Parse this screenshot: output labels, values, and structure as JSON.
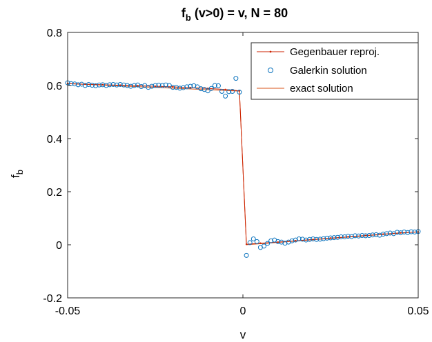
{
  "chart_data": {
    "type": "line",
    "title": {
      "base": "f",
      "sub": "b",
      "rest": " (v>0) = v, N = 80"
    },
    "xlabel": "v",
    "ylabel": {
      "base": "f",
      "sub": "b"
    },
    "xlim": [
      -0.05,
      0.05
    ],
    "ylim": [
      -0.2,
      0.8
    ],
    "xticks": [
      -0.05,
      0,
      0.05
    ],
    "xtick_labels": [
      "-0.05",
      "0",
      "0.05"
    ],
    "yticks": [
      -0.2,
      0,
      0.2,
      0.4,
      0.6,
      0.8
    ],
    "ytick_labels": [
      "-0.2",
      "0",
      "0.2",
      "0.4",
      "0.6",
      "0.8"
    ],
    "grid": false,
    "legend_position": "top-right",
    "series": [
      {
        "name": "Gegenbauer reproj.",
        "style": "line-with-dots",
        "color": "#cc2200",
        "x": [
          -0.05,
          -0.045,
          -0.04,
          -0.035,
          -0.03,
          -0.025,
          -0.02,
          -0.015,
          -0.01,
          -0.005,
          -0.001,
          0.001,
          0.005,
          0.01,
          0.015,
          0.02,
          0.025,
          0.03,
          0.035,
          0.04,
          0.045,
          0.05
        ],
        "y": [
          0.607,
          0.605,
          0.603,
          0.601,
          0.599,
          0.597,
          0.595,
          0.592,
          0.589,
          0.585,
          0.58,
          0.002,
          0.006,
          0.01,
          0.015,
          0.02,
          0.025,
          0.03,
          0.035,
          0.04,
          0.045,
          0.048
        ]
      },
      {
        "name": "Galerkin solution",
        "style": "markers",
        "color": "#0a72bd",
        "x": [
          -0.05,
          -0.049,
          -0.048,
          -0.047,
          -0.046,
          -0.045,
          -0.044,
          -0.043,
          -0.042,
          -0.041,
          -0.04,
          -0.039,
          -0.038,
          -0.037,
          -0.036,
          -0.035,
          -0.034,
          -0.033,
          -0.032,
          -0.031,
          -0.03,
          -0.029,
          -0.028,
          -0.027,
          -0.026,
          -0.025,
          -0.024,
          -0.023,
          -0.022,
          -0.021,
          -0.02,
          -0.019,
          -0.018,
          -0.017,
          -0.016,
          -0.015,
          -0.014,
          -0.013,
          -0.012,
          -0.011,
          -0.01,
          -0.009,
          -0.008,
          -0.007,
          -0.006,
          -0.005,
          -0.004,
          -0.003,
          -0.002,
          -0.001,
          0.001,
          0.002,
          0.003,
          0.004,
          0.005,
          0.006,
          0.007,
          0.008,
          0.009,
          0.01,
          0.011,
          0.012,
          0.013,
          0.014,
          0.015,
          0.016,
          0.017,
          0.018,
          0.019,
          0.02,
          0.021,
          0.022,
          0.023,
          0.024,
          0.025,
          0.026,
          0.027,
          0.028,
          0.029,
          0.03,
          0.031,
          0.032,
          0.033,
          0.034,
          0.035,
          0.036,
          0.037,
          0.038,
          0.039,
          0.04,
          0.041,
          0.042,
          0.043,
          0.044,
          0.045,
          0.046,
          0.047,
          0.048,
          0.049,
          0.05
        ],
        "y": [
          0.61,
          0.607,
          0.606,
          0.603,
          0.605,
          0.6,
          0.604,
          0.601,
          0.599,
          0.602,
          0.603,
          0.6,
          0.603,
          0.604,
          0.602,
          0.604,
          0.602,
          0.6,
          0.597,
          0.6,
          0.602,
          0.596,
          0.6,
          0.593,
          0.597,
          0.6,
          0.601,
          0.6,
          0.602,
          0.6,
          0.593,
          0.593,
          0.59,
          0.592,
          0.595,
          0.597,
          0.599,
          0.595,
          0.588,
          0.585,
          0.58,
          0.589,
          0.6,
          0.599,
          0.578,
          0.56,
          0.577,
          0.578,
          0.627,
          0.575,
          -0.04,
          0.008,
          0.022,
          0.012,
          -0.01,
          -0.005,
          0.005,
          0.015,
          0.018,
          0.012,
          0.01,
          0.006,
          0.01,
          0.015,
          0.018,
          0.022,
          0.021,
          0.018,
          0.02,
          0.022,
          0.02,
          0.021,
          0.023,
          0.025,
          0.026,
          0.027,
          0.028,
          0.03,
          0.03,
          0.032,
          0.031,
          0.034,
          0.033,
          0.035,
          0.034,
          0.035,
          0.037,
          0.038,
          0.036,
          0.04,
          0.042,
          0.044,
          0.042,
          0.047,
          0.045,
          0.048,
          0.046,
          0.049,
          0.048,
          0.05
        ]
      },
      {
        "name": "exact solution",
        "style": "line",
        "color": "#d95319",
        "x": [
          -0.05,
          -0.001,
          0.001,
          0.05
        ],
        "y": [
          0.607,
          0.579,
          0.0,
          0.049
        ]
      }
    ]
  }
}
